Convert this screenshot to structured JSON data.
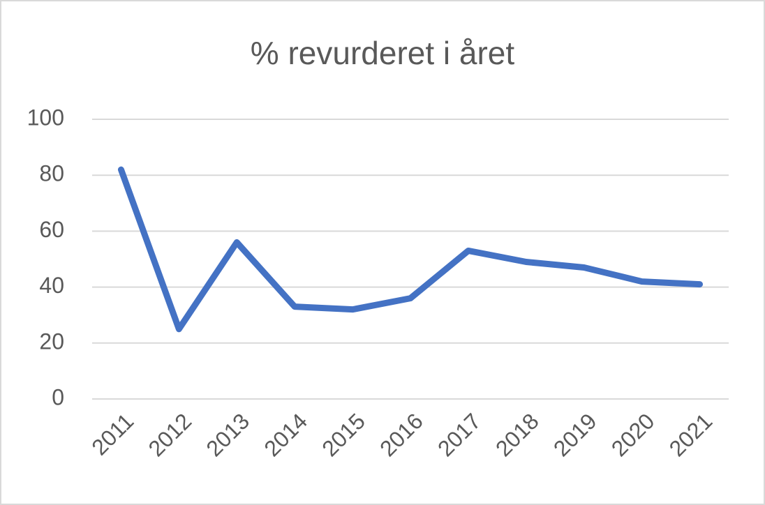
{
  "chart_data": {
    "type": "line",
    "title": "% revurderet i året",
    "categories": [
      "2011",
      "2012",
      "2013",
      "2014",
      "2015",
      "2016",
      "2017",
      "2018",
      "2019",
      "2020",
      "2021"
    ],
    "values": [
      82,
      25,
      56,
      33,
      32,
      36,
      53,
      49,
      47,
      42,
      41
    ],
    "color": "#4472c4",
    "ylim": [
      0,
      100
    ],
    "yticks": [
      0,
      20,
      40,
      60,
      80,
      100
    ],
    "grid": true
  }
}
